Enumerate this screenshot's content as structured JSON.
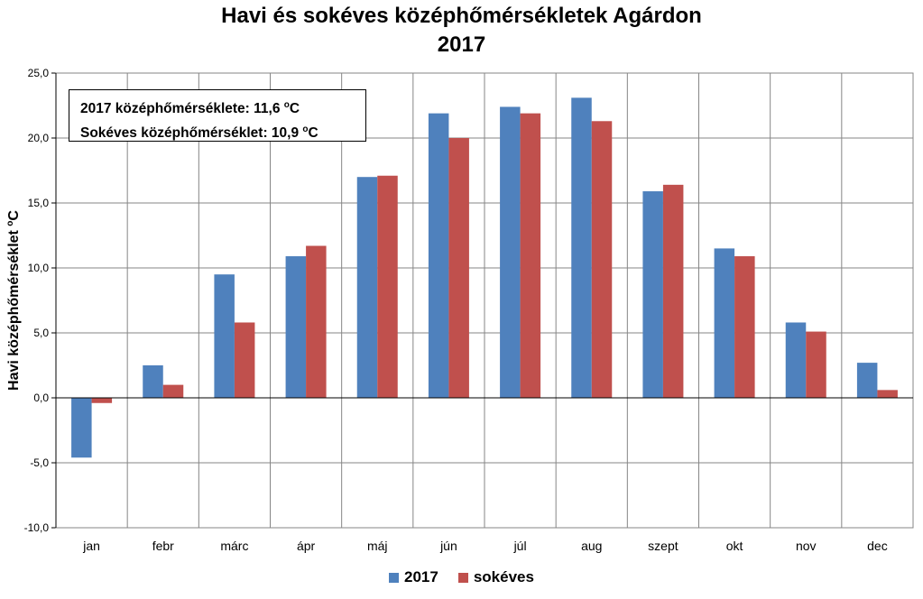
{
  "title_line1": "Havi és sokéves középhőmérsékletek Agárdon",
  "title_line2": "2017",
  "info": {
    "line1_text": "2017 középhőmérséklete: 11,6 ",
    "line1_unit_sup": "o",
    "line1_unit": "C",
    "line2_text": "Sokéves középhőmérséklet: 10,9 ",
    "line2_unit_sup": "o",
    "line2_unit": "C"
  },
  "colors": {
    "series_2017": "#4f81bd",
    "series_sokeves": "#c0504d",
    "grid": "#868686"
  },
  "chart_data": {
    "type": "bar",
    "categories": [
      "jan",
      "febr",
      "márc",
      "ápr",
      "máj",
      "jún",
      "júl",
      "aug",
      "szept",
      "okt",
      "nov",
      "dec"
    ],
    "series": [
      {
        "name": "2017",
        "values": [
          -4.6,
          2.5,
          9.5,
          10.9,
          17.0,
          21.9,
          22.4,
          23.1,
          15.9,
          11.5,
          5.8,
          2.7
        ]
      },
      {
        "name": "sokéves",
        "values": [
          -0.4,
          1.0,
          5.8,
          11.7,
          17.1,
          20.0,
          21.9,
          21.3,
          16.4,
          10.9,
          5.1,
          0.6
        ]
      }
    ],
    "ylabel": "Havi középhőmérséklet ",
    "ylabel_sup": "o",
    "ylabel_unit": "C",
    "ylim": [
      -10,
      25
    ],
    "y_ticks": [
      -10,
      -5,
      0,
      5,
      10,
      15,
      20,
      25
    ],
    "y_tick_labels": [
      "-10,0",
      "-5,0",
      "0,0",
      "5,0",
      "10,0",
      "15,0",
      "20,0",
      "25,0"
    ],
    "grid": true,
    "legend": "bottom"
  }
}
